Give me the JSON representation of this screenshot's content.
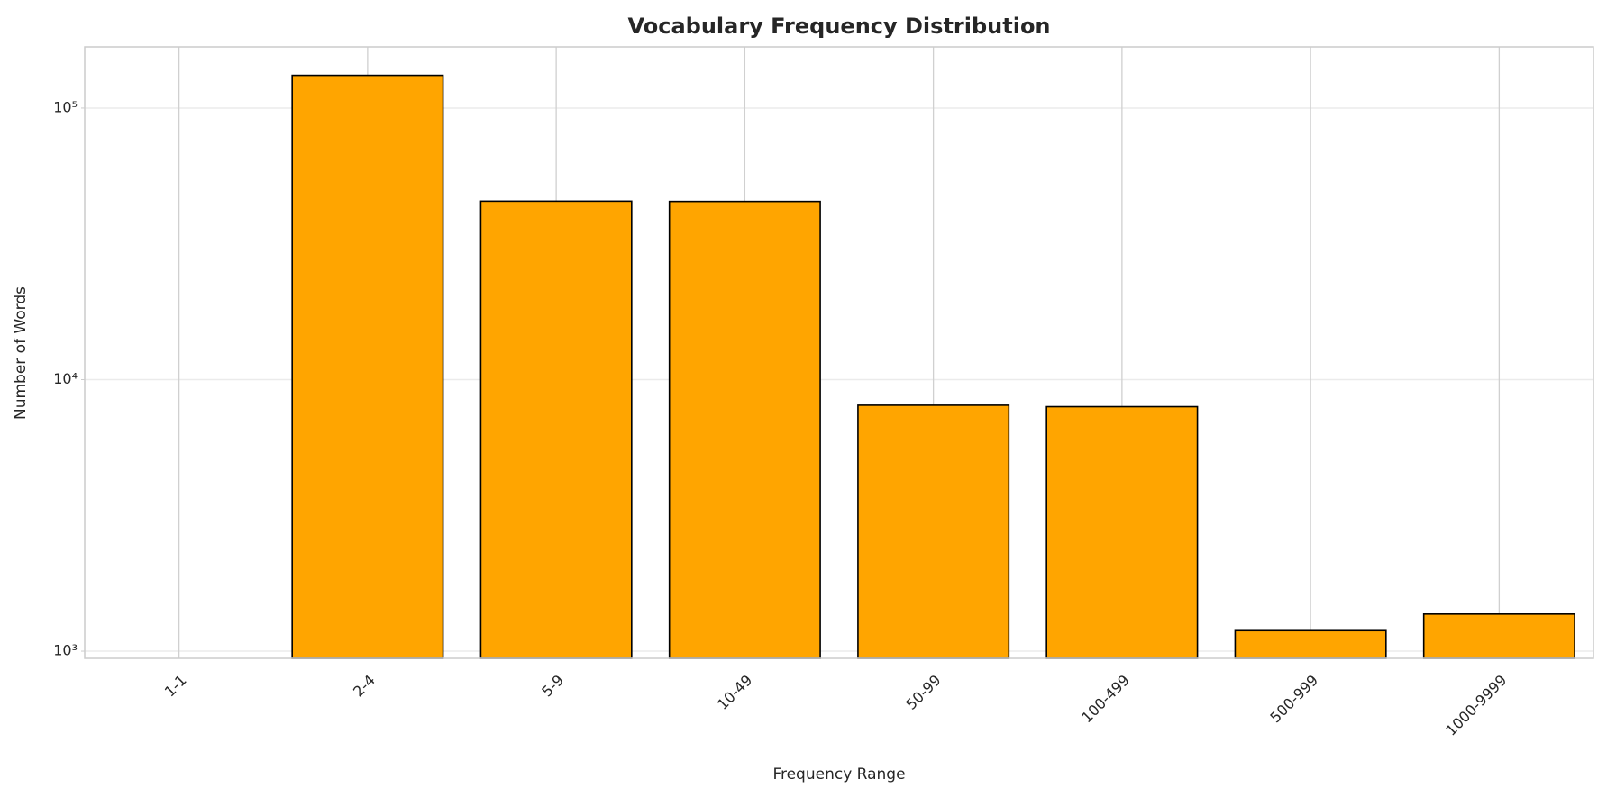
{
  "chart_data": {
    "type": "bar",
    "title": "Vocabulary Frequency Distribution",
    "x_label": "Frequency Range",
    "y_label": "Number of Words",
    "categories": [
      "1-1",
      "2-4",
      "5-9",
      "10-49",
      "50-99",
      "100-499",
      "500-999",
      "1000-9999"
    ],
    "values": [
      0,
      132000,
      45400,
      45300,
      8050,
      7950,
      1190,
      1370
    ],
    "color": "#ffa500",
    "edge_color": "#000000",
    "y_scale": "log",
    "ylim": [
      941,
      168000
    ],
    "yticks": [
      {
        "value": 1000,
        "label": "10³"
      },
      {
        "value": 10000,
        "label": "10⁴"
      },
      {
        "value": 100000,
        "label": "10⁵"
      }
    ],
    "grid": true
  }
}
